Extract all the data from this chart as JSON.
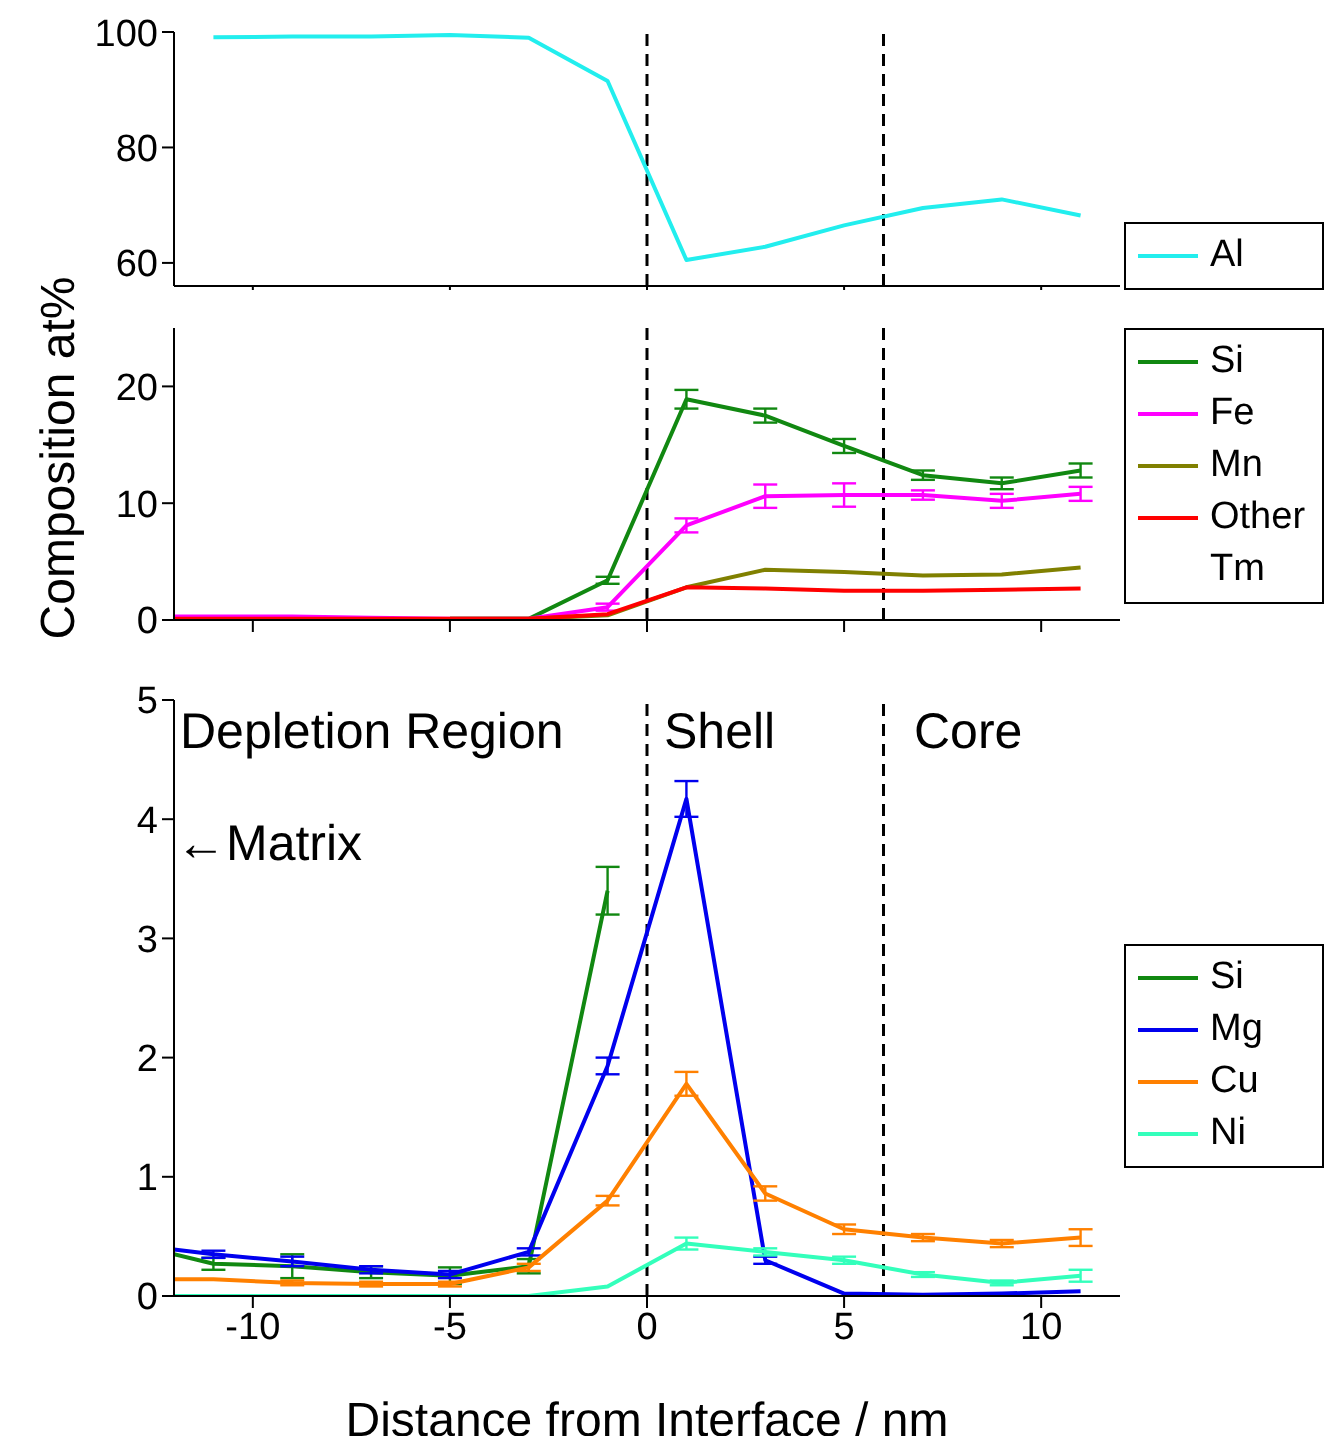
{
  "chart_data": [
    {
      "type": "line",
      "x": [
        -11,
        -9,
        -7,
        -5,
        -3,
        -1,
        1,
        3,
        5,
        7,
        9,
        11
      ],
      "xlim": [
        -12,
        12
      ],
      "xticks": [
        {
          "value": -10,
          "label": null
        },
        {
          "value": -5,
          "label": null
        },
        {
          "value": 0,
          "label": null
        },
        {
          "value": 5,
          "label": null
        },
        {
          "value": 10,
          "label": null
        }
      ],
      "ylim": [
        56,
        100
      ],
      "yticks": [
        60,
        80,
        100
      ],
      "tick_labels": "y",
      "marker": "none",
      "legend": "bottom right",
      "series": [
        {
          "name": "Al",
          "color": "#22eeee",
          "values": [
            99.1,
            99.2,
            99.2,
            99.5,
            99,
            91.5,
            60.5,
            62.8,
            66.5,
            69.5,
            71,
            68.2
          ]
        }
      ],
      "ref_lines": [
        {
          "axis": "x",
          "value": 0,
          "color": "#000000",
          "line_style": "dashed"
        },
        {
          "axis": "x",
          "value": 6,
          "color": "#000000",
          "line_style": "dashed"
        }
      ]
    },
    {
      "type": "line",
      "ylabel": "Composition at%",
      "x": [
        -12,
        -11,
        -9,
        -7,
        -5,
        -3,
        -1,
        1,
        3,
        5,
        7,
        9,
        11
      ],
      "xlim": [
        -12,
        12
      ],
      "xticks": [
        {
          "value": -10,
          "label": null
        },
        {
          "value": -5,
          "label": null
        },
        {
          "value": 0,
          "label": null
        },
        {
          "value": 5,
          "label": null
        },
        {
          "value": 10,
          "label": null
        }
      ],
      "ylim": [
        0,
        25
      ],
      "yticks": [
        0,
        10,
        20
      ],
      "tick_labels": "y",
      "marker": "none",
      "legend": "top right",
      "series": [
        {
          "name": "Si",
          "color": "#118811",
          "values": [
            null,
            null,
            null,
            null,
            0.1,
            0.1,
            3.4,
            18.9,
            17.5,
            14.9,
            12.4,
            11.7,
            12.8
          ],
          "errors": [
            null,
            null,
            null,
            null,
            null,
            null,
            0.3,
            0.8,
            0.6,
            0.6,
            0.4,
            0.5,
            0.6
          ]
        },
        {
          "name": "Fe",
          "color": "#ff00ff",
          "values": [
            0.3,
            0.3,
            0.3,
            0.2,
            0.1,
            0.1,
            1.1,
            8.1,
            10.6,
            10.7,
            10.7,
            10.2,
            10.8
          ],
          "errors": [
            null,
            null,
            null,
            null,
            null,
            null,
            0.3,
            0.6,
            1,
            1,
            0.4,
            0.6,
            0.6
          ]
        },
        {
          "name": "Mn",
          "color": "#808000",
          "values": [
            null,
            null,
            null,
            null,
            0.1,
            0.1,
            0.4,
            2.8,
            4.3,
            4.1,
            3.8,
            3.9,
            4.5
          ]
        },
        {
          "name": "Other Tm",
          "color": "#ff0000",
          "values": [
            0.1,
            0.1,
            0.1,
            0.1,
            0.1,
            0.1,
            0.5,
            2.8,
            2.7,
            2.5,
            2.5,
            2.6,
            2.7
          ]
        }
      ],
      "ref_lines": [
        {
          "axis": "x",
          "value": 0,
          "color": "#000000",
          "line_style": "dashed"
        },
        {
          "axis": "x",
          "value": 6,
          "color": "#000000",
          "line_style": "dashed"
        }
      ]
    },
    {
      "type": "line",
      "xlabel": "Distance from Interface / nm",
      "x": [
        -12,
        -11,
        -9,
        -7,
        -5,
        -3,
        -1,
        1,
        3,
        5,
        7,
        9,
        11
      ],
      "xlim": [
        -12,
        12
      ],
      "xticks": [
        -10,
        -5,
        0,
        5,
        10
      ],
      "ylim": [
        0,
        5
      ],
      "yticks": [
        0,
        1,
        2,
        3,
        4,
        5
      ],
      "marker": "none",
      "legend": "right",
      "series": [
        {
          "name": "Si",
          "color": "#118811",
          "values": [
            0.35,
            0.27,
            0.25,
            0.2,
            0.17,
            0.25,
            3.4,
            null,
            null,
            null,
            null,
            null,
            null
          ],
          "errors": [
            null,
            0.05,
            0.1,
            0.05,
            0.07,
            0.06,
            0.2,
            null,
            null,
            null,
            null,
            null,
            null
          ]
        },
        {
          "name": "Mg",
          "color": "#0000ee",
          "values": [
            0.39,
            0.35,
            0.29,
            0.22,
            0.18,
            0.37,
            1.93,
            4.17,
            0.3,
            0.02,
            0.01,
            0.02,
            0.04
          ],
          "errors": [
            null,
            0.03,
            0.04,
            0.03,
            0.03,
            0.03,
            0.07,
            0.15,
            0.03,
            null,
            null,
            null,
            null
          ]
        },
        {
          "name": "Cu",
          "color": "#ff8000",
          "values": [
            0.14,
            0.14,
            0.11,
            0.1,
            0.1,
            0.24,
            0.8,
            1.78,
            0.86,
            0.56,
            0.49,
            0.44,
            0.49
          ],
          "errors": [
            null,
            null,
            0.02,
            0.02,
            0.02,
            0.03,
            0.04,
            0.1,
            0.06,
            0.04,
            0.03,
            0.03,
            0.07
          ]
        },
        {
          "name": "Ni",
          "color": "#33ffbb",
          "values": [
            0,
            0,
            0,
            0,
            0,
            0,
            0.08,
            0.44,
            0.37,
            0.3,
            0.18,
            0.11,
            0.17
          ],
          "errors": [
            null,
            null,
            null,
            null,
            null,
            null,
            null,
            0.05,
            0.03,
            0.03,
            0.02,
            0.02,
            0.05
          ]
        }
      ],
      "ref_lines": [
        {
          "axis": "x",
          "value": 0,
          "color": "#000000",
          "line_style": "dashed"
        },
        {
          "axis": "x",
          "value": 6,
          "color": "#000000",
          "line_style": "dashed"
        }
      ],
      "annotations": [
        "Depletion Region",
        "Shell",
        "Core",
        "←Matrix"
      ]
    }
  ]
}
